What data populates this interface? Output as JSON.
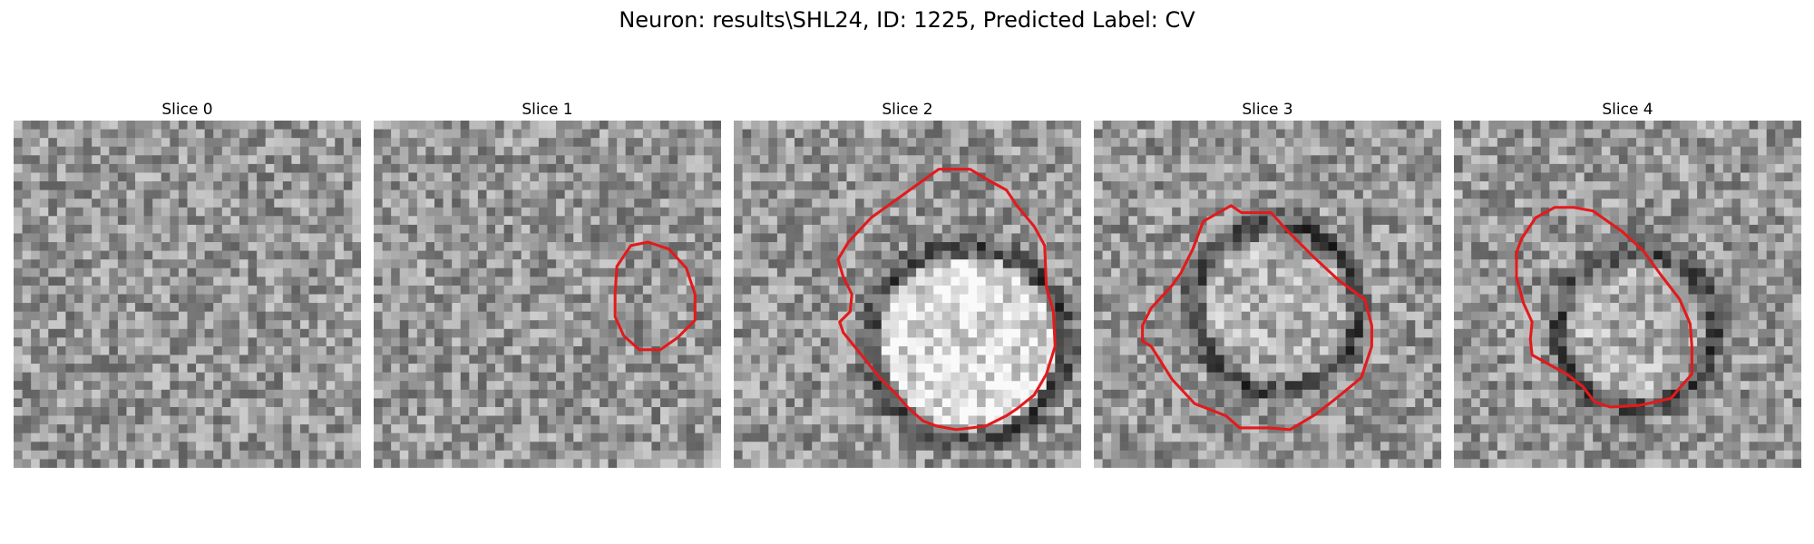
{
  "figure": {
    "title": "Neuron: results\\SHL24, ID: 1225, Predicted Label: CV",
    "outline_color": "#e31a1c"
  },
  "panels": [
    {
      "title": "Slice 0",
      "seed": 11,
      "vesicle": null
    },
    {
      "title": "Slice 1",
      "seed": 23,
      "vesicle": {
        "cx": 15.9,
        "cy": 11.2,
        "r": 1.6,
        "ring": "none",
        "fill": "gray"
      },
      "outline": [
        [
          14,
          8.4
        ],
        [
          14.8,
          7.2
        ],
        [
          15.8,
          7.0
        ],
        [
          17,
          7.4
        ],
        [
          18,
          8.5
        ],
        [
          18.5,
          10.0
        ],
        [
          18.5,
          11.5
        ],
        [
          17.5,
          12.5
        ],
        [
          16.5,
          13.2
        ],
        [
          15.3,
          13.2
        ],
        [
          14.4,
          12.4
        ],
        [
          13.9,
          11.3
        ],
        [
          13.9,
          10.0
        ]
      ]
    },
    {
      "title": "Slice 2",
      "seed": 37,
      "vesicle": {
        "cx": 13.5,
        "cy": 12.8,
        "r": 5.6,
        "ring": "dark",
        "fill": "bright"
      },
      "outline": [
        [
          7.9,
          5.6
        ],
        [
          11.8,
          2.8
        ],
        [
          13.6,
          2.8
        ],
        [
          14.6,
          3.4
        ],
        [
          15.7,
          4.0
        ],
        [
          16.3,
          4.9
        ],
        [
          17.3,
          6.1
        ],
        [
          17.9,
          7.2
        ],
        [
          18.0,
          9.6
        ],
        [
          18.4,
          11.0
        ],
        [
          18.5,
          13.0
        ],
        [
          18.0,
          14.6
        ],
        [
          17.3,
          15.8
        ],
        [
          16.3,
          16.6
        ],
        [
          15.7,
          17.0
        ],
        [
          14.5,
          17.6
        ],
        [
          12.8,
          17.8
        ],
        [
          11.7,
          17.6
        ],
        [
          10.9,
          17.3
        ],
        [
          10.0,
          16.5
        ],
        [
          9.4,
          15.8
        ],
        [
          8.4,
          14.8
        ],
        [
          6.3,
          12.2
        ],
        [
          6.1,
          11.6
        ],
        [
          6.7,
          11.0
        ],
        [
          6.8,
          10.0
        ],
        [
          6.3,
          9.0
        ],
        [
          6.0,
          8.0
        ],
        [
          6.6,
          7.0
        ]
      ]
    },
    {
      "title": "Slice 3",
      "seed": 41,
      "vesicle": {
        "cx": 10.5,
        "cy": 10.8,
        "r": 4.8,
        "ring": "dark",
        "fill": "light"
      },
      "outline": [
        [
          6.3,
          5.8
        ],
        [
          7.9,
          4.9
        ],
        [
          8.5,
          5.3
        ],
        [
          10.2,
          5.3
        ],
        [
          11.1,
          6.3
        ],
        [
          12.7,
          7.9
        ],
        [
          14.1,
          9.2
        ],
        [
          15.6,
          10.3
        ],
        [
          16.0,
          11.8
        ],
        [
          16.0,
          13.0
        ],
        [
          15.4,
          14.8
        ],
        [
          14.2,
          15.8
        ],
        [
          12.8,
          16.9
        ],
        [
          11.3,
          17.8
        ],
        [
          10.1,
          17.7
        ],
        [
          8.4,
          17.7
        ],
        [
          7.6,
          17.0
        ],
        [
          5.8,
          16.3
        ],
        [
          4.5,
          14.9
        ],
        [
          3.3,
          13.0
        ],
        [
          2.8,
          12.7
        ],
        [
          2.8,
          11.8
        ],
        [
          3.3,
          10.8
        ],
        [
          4.5,
          9.5
        ],
        [
          5.0,
          8.8
        ],
        [
          5.7,
          7.4
        ]
      ]
    },
    {
      "title": "Slice 4",
      "seed": 53,
      "vesicle": {
        "cx": 10.5,
        "cy": 12.0,
        "r": 4.5,
        "ring": "dark",
        "fill": "light"
      },
      "outline": [
        [
          4.7,
          5.6
        ],
        [
          5.8,
          5.0
        ],
        [
          6.9,
          5.0
        ],
        [
          8.0,
          5.2
        ],
        [
          9.7,
          6.4
        ],
        [
          10.9,
          7.5
        ],
        [
          12.0,
          9.0
        ],
        [
          13.0,
          10.3
        ],
        [
          13.6,
          11.7
        ],
        [
          13.7,
          13.0
        ],
        [
          13.7,
          14.6
        ],
        [
          13.0,
          15.4
        ],
        [
          12.5,
          16.0
        ],
        [
          10.7,
          16.4
        ],
        [
          9.0,
          16.5
        ],
        [
          8.1,
          16.2
        ],
        [
          7.4,
          15.3
        ],
        [
          6.5,
          14.6
        ],
        [
          5.4,
          14.0
        ],
        [
          4.5,
          13.5
        ],
        [
          4.4,
          12.6
        ],
        [
          4.5,
          11.6
        ],
        [
          4.0,
          10.5
        ],
        [
          3.6,
          9.0
        ],
        [
          3.6,
          7.6
        ],
        [
          3.9,
          6.8
        ]
      ]
    }
  ]
}
